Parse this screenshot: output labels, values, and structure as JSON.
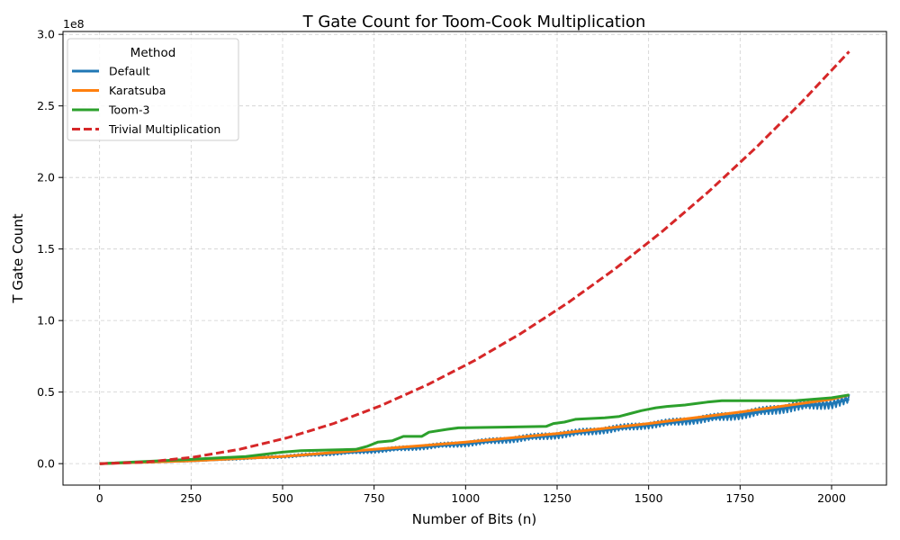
{
  "chart_data": {
    "type": "line",
    "title": "T Gate Count for Toom-Cook Multiplication",
    "xlabel": "Number of Bits (n)",
    "ylabel": "T Gate Count",
    "y_offset_label": "1e8",
    "xlim": [
      -100,
      2150
    ],
    "ylim": [
      -0.15,
      3.02
    ],
    "x_ticks": [
      0,
      250,
      500,
      750,
      1000,
      1250,
      1500,
      1750,
      2000
    ],
    "y_ticks": [
      0.0,
      0.5,
      1.0,
      1.5,
      2.0,
      2.5,
      3.0
    ],
    "y_tick_labels": [
      "0.0",
      "0.5",
      "1.0",
      "1.5",
      "2.0",
      "2.5",
      "3.0"
    ],
    "grid": true,
    "legend": {
      "title": "Method",
      "position": "top-left"
    },
    "series": [
      {
        "name": "Default",
        "color": "#1f77b4",
        "style": "solid",
        "x": [
          0,
          250,
          500,
          750,
          1000,
          1250,
          1500,
          1750,
          1900,
          2000,
          2048
        ],
        "y": [
          0.0,
          0.02,
          0.05,
          0.09,
          0.14,
          0.2,
          0.27,
          0.34,
          0.4,
          0.42,
          0.45
        ],
        "band": [
          0.0,
          0.01,
          0.02,
          0.03,
          0.04,
          0.05,
          0.05,
          0.06,
          0.07,
          0.07,
          0.07
        ]
      },
      {
        "name": "Karatsuba",
        "color": "#ff7f0e",
        "style": "solid",
        "x": [
          0,
          250,
          500,
          750,
          1000,
          1250,
          1500,
          1750,
          2000,
          2048
        ],
        "y": [
          0.0,
          0.02,
          0.05,
          0.1,
          0.15,
          0.21,
          0.28,
          0.36,
          0.45,
          0.48
        ]
      },
      {
        "name": "Toom-3",
        "color": "#2ca02c",
        "style": "solid",
        "x": [
          0,
          250,
          400,
          500,
          550,
          700,
          730,
          760,
          800,
          830,
          880,
          900,
          950,
          980,
          1100,
          1220,
          1240,
          1270,
          1300,
          1380,
          1420,
          1450,
          1480,
          1500,
          1520,
          1550,
          1600,
          1630,
          1660,
          1700,
          1750,
          1900,
          2000,
          2048
        ],
        "y": [
          0.0,
          0.03,
          0.05,
          0.08,
          0.09,
          0.1,
          0.12,
          0.15,
          0.16,
          0.19,
          0.19,
          0.22,
          0.24,
          0.25,
          0.255,
          0.26,
          0.28,
          0.29,
          0.31,
          0.32,
          0.33,
          0.35,
          0.37,
          0.38,
          0.39,
          0.4,
          0.41,
          0.42,
          0.43,
          0.44,
          0.44,
          0.44,
          0.46,
          0.48
        ]
      },
      {
        "name": "Trivial Multiplication",
        "color": "#d62728",
        "style": "dashed",
        "x": [
          0,
          128,
          256,
          384,
          512,
          640,
          768,
          896,
          1024,
          1152,
          1280,
          1408,
          1536,
          1664,
          1792,
          1920,
          2048
        ],
        "y": [
          0.0,
          0.011,
          0.045,
          0.101,
          0.18,
          0.281,
          0.405,
          0.551,
          0.72,
          0.911,
          1.125,
          1.361,
          1.62,
          1.901,
          2.205,
          2.531,
          2.88
        ]
      }
    ]
  }
}
